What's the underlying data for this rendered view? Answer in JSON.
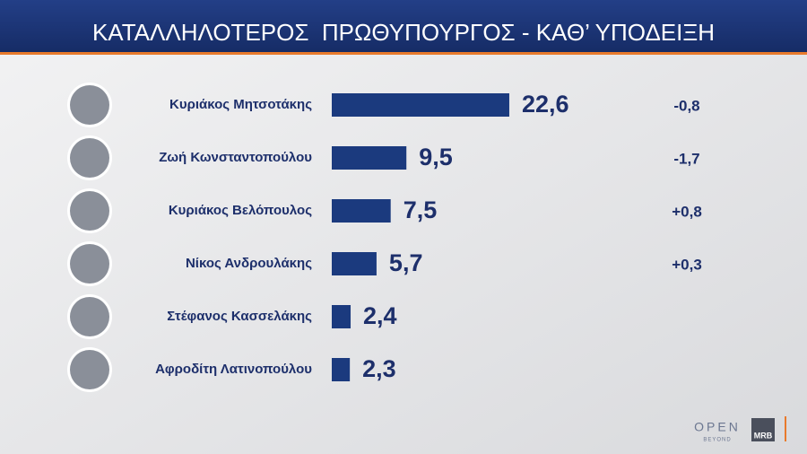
{
  "chart_data": {
    "type": "hbar",
    "title": "ΚΑΤΑΛΛΗΛΟΤΕΡΟΣ  ΠΡΩΘΥΠΟΥΡΓΟΣ - ΚΑΘ’ ΥΠΟΔΕΙΞΗ",
    "categories": [
      "Κυριάκος Μητσοτάκης",
      "Ζωή Κωνσταντοπούλου",
      "Κυριάκος Βελόπουλος",
      "Νίκος Ανδρουλάκης",
      "Στέφανος Κασσελάκης",
      "Αφροδίτη Λατινοπούλου"
    ],
    "values": [
      22.6,
      9.5,
      7.5,
      5.7,
      2.4,
      2.3
    ],
    "value_labels": [
      "22,6",
      "9,5",
      "7,5",
      "5,7",
      "2,4",
      "2,3"
    ],
    "changes": [
      -0.8,
      -1.7,
      0.8,
      0.3,
      null,
      null
    ],
    "change_labels": [
      "-0,8",
      "-1,7",
      "+0,8",
      "+0,3",
      null,
      null
    ],
    "color": "#1b3a7e"
  },
  "branding": {
    "logo": "OPEN",
    "tagline": "BEYOND",
    "pollster": "MRB"
  }
}
